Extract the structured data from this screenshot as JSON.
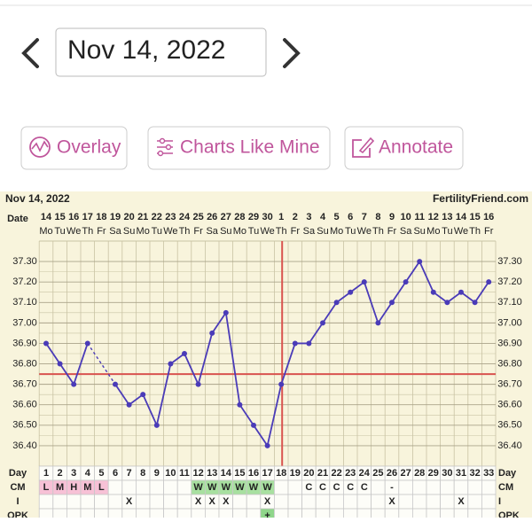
{
  "date_picker": {
    "date": "Nov 14, 2022"
  },
  "buttons": [
    "Overlay",
    "Charts Like Mine",
    "Annotate"
  ],
  "chart_data": {
    "type": "line",
    "title": "Nov 14, 2022",
    "site": "FertilityFriend.com",
    "date_label": "Date",
    "dates": [
      14,
      15,
      16,
      17,
      18,
      19,
      20,
      21,
      22,
      23,
      24,
      25,
      26,
      27,
      28,
      29,
      30,
      1,
      2,
      3,
      4,
      5,
      6,
      7,
      8,
      9,
      10,
      11,
      12,
      13,
      14,
      15,
      16
    ],
    "weekdays": [
      "Mo",
      "Tu",
      "We",
      "Th",
      "Fr",
      "Sa",
      "Su",
      "Mo",
      "Tu",
      "We",
      "Th",
      "Fr",
      "Sa",
      "Su",
      "Mo",
      "Tu",
      "We",
      "Th",
      "Fr",
      "Sa",
      "Su",
      "Mo",
      "Tu",
      "We",
      "Th",
      "Fr",
      "Sa",
      "Su",
      "Mo",
      "Tu",
      "We",
      "Th",
      "Fr"
    ],
    "values": [
      36.9,
      36.8,
      36.7,
      36.9,
      null,
      36.7,
      36.6,
      36.65,
      36.5,
      36.8,
      36.85,
      36.7,
      36.95,
      37.05,
      36.6,
      36.5,
      36.4,
      36.7,
      36.9,
      36.9,
      37.0,
      37.1,
      37.15,
      37.2,
      37.0,
      37.1,
      37.2,
      37.3,
      37.15,
      37.1,
      37.15,
      37.1,
      37.2
    ],
    "color": "#4a3bb8",
    "coverline": 36.75,
    "coverline_color": "#d9534f",
    "ylim": [
      36.3,
      37.4
    ],
    "yticks": [
      {
        "value": 37.3,
        "label": "37.30"
      },
      {
        "value": 37.2,
        "label": "37.20"
      },
      {
        "value": 37.1,
        "label": "37.10"
      },
      {
        "value": 37.0,
        "label": "37.00"
      },
      {
        "value": 36.9,
        "label": "36.90"
      },
      {
        "value": 36.8,
        "label": "36.80"
      },
      {
        "value": 36.7,
        "label": "36.70"
      },
      {
        "value": 36.6,
        "label": "36.60"
      },
      {
        "value": 36.5,
        "label": "36.50"
      },
      {
        "value": 36.4,
        "label": "36.40"
      }
    ],
    "day_label": "Day",
    "days": [
      1,
      2,
      3,
      4,
      5,
      6,
      7,
      8,
      9,
      10,
      11,
      12,
      13,
      14,
      15,
      16,
      17,
      18,
      19,
      20,
      21,
      22,
      23,
      24,
      25,
      26,
      27,
      28,
      29,
      30,
      31,
      32,
      33
    ],
    "rows": [
      {
        "label": "CM",
        "values": [
          "L",
          "M",
          "H",
          "M",
          "L",
          null,
          null,
          null,
          null,
          null,
          null,
          "W",
          "W",
          "W",
          "W",
          "W",
          "W",
          null,
          null,
          "C",
          "C",
          "C",
          "C",
          "C",
          null,
          "-",
          null,
          null,
          null,
          null,
          null,
          null,
          null
        ],
        "colors": [
          "#f7c1d6",
          "#f7c1d6",
          "#f7c1d6",
          "#f7c1d6",
          "#f7c1d6",
          null,
          null,
          null,
          null,
          null,
          null,
          "#a8e0a0",
          "#a8e0a0",
          "#a8e0a0",
          "#a8e0a0",
          "#a8e0a0",
          "#a8e0a0",
          null,
          null,
          null,
          null,
          null,
          null,
          null,
          null,
          null,
          null,
          null,
          null,
          null,
          null,
          null,
          null
        ]
      },
      {
        "label": "I",
        "values": [
          null,
          null,
          null,
          null,
          null,
          null,
          "X",
          null,
          null,
          null,
          null,
          "X",
          "X",
          "X",
          null,
          null,
          "X",
          null,
          null,
          null,
          null,
          null,
          null,
          null,
          null,
          "X",
          null,
          null,
          null,
          null,
          "X",
          null,
          null
        ]
      },
      {
        "label": "OPK",
        "values": [
          null,
          null,
          null,
          null,
          null,
          null,
          null,
          null,
          null,
          null,
          null,
          null,
          null,
          null,
          null,
          null,
          "+",
          null,
          null,
          null,
          null,
          null,
          null,
          null,
          null,
          null,
          null,
          null,
          null,
          null,
          null,
          null,
          null
        ],
        "colors": [
          null,
          null,
          null,
          null,
          null,
          null,
          null,
          null,
          null,
          null,
          null,
          null,
          null,
          null,
          null,
          null,
          "#8fd68a",
          null,
          null,
          null,
          null,
          null,
          null,
          null,
          null,
          null,
          null,
          null,
          null,
          null,
          null,
          null,
          null
        ]
      }
    ]
  }
}
